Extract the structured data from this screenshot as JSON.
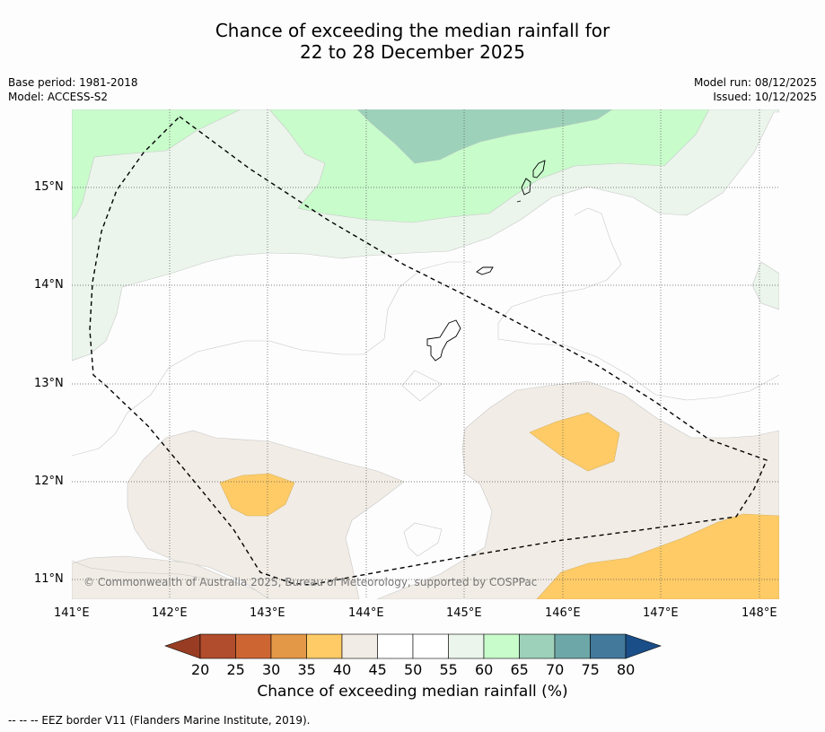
{
  "title": {
    "line1": "Chance of exceeding the median rainfall for",
    "line2": "22 to 28 December 2025"
  },
  "metadata": {
    "base_period": "Base period: 1981-2018",
    "model": "Model: ACCESS-S2",
    "model_run": "Model run: 08/12/2025",
    "issued": "Issued: 10/12/2025"
  },
  "map": {
    "lon_labels": [
      "141°E",
      "142°E",
      "143°E",
      "144°E",
      "145°E",
      "146°E",
      "147°E",
      "148°E"
    ],
    "lat_labels": [
      "15°N",
      "14°N",
      "13°N",
      "12°N",
      "11°N"
    ],
    "lon_range": [
      141,
      148.2
    ],
    "lat_range": [
      10.8,
      15.8
    ],
    "copyright": "© Commonwealth of Australia 2025, Bureau of Meteorology, supported by COSPPac",
    "border_style": "dashed",
    "colors": {
      "c35_40": "#fecb66",
      "c40_45": "#f1ece5",
      "c45_55": "#fdfdfd",
      "c55_60": "#ebf5eb",
      "c60_65": "#c8fccb",
      "c65_70": "#9dd1ba",
      "land_outline": "#000000"
    }
  },
  "colorbar": {
    "ticks": [
      "20",
      "25",
      "30",
      "35",
      "40",
      "45",
      "50",
      "55",
      "60",
      "65",
      "70",
      "75",
      "80"
    ],
    "colors": [
      "#b14c2c",
      "#cd6533",
      "#e39848",
      "#fecb66",
      "#f1ece5",
      "#ffffff",
      "#ffffff",
      "#ebf5eb",
      "#c8fccb",
      "#9dd1ba",
      "#6ea7a7",
      "#43799b"
    ],
    "under_color": "#983d23",
    "over_color": "#1a4e88",
    "title": "Chance of exceeding median rainfall (%)"
  },
  "footnote": "--  --  -- EEZ border V11 (Flanders Marine Institute, 2019)."
}
